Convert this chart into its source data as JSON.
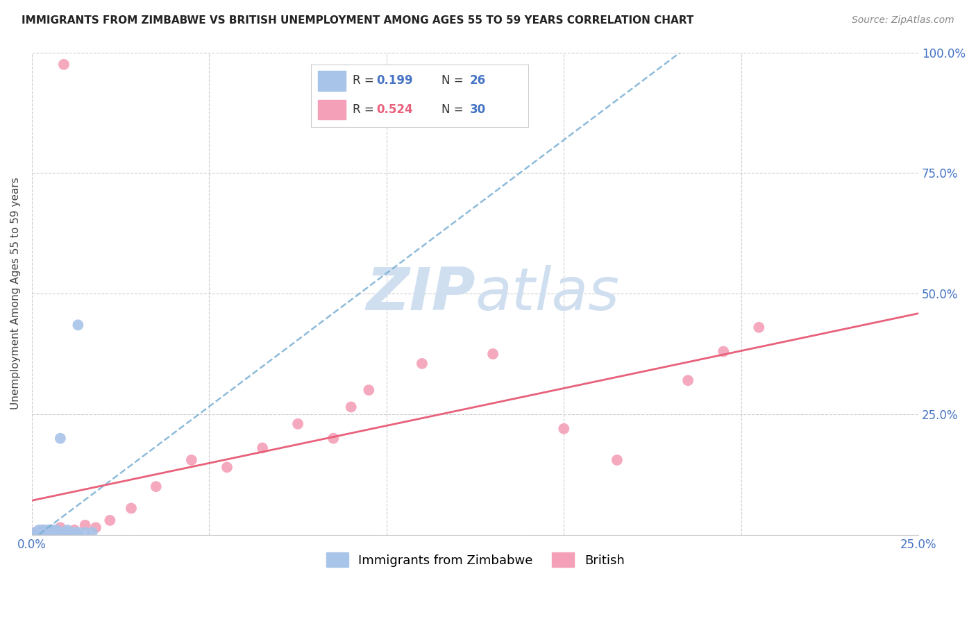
{
  "title": "IMMIGRANTS FROM ZIMBABWE VS BRITISH UNEMPLOYMENT AMONG AGES 55 TO 59 YEARS CORRELATION CHART",
  "source": "Source: ZipAtlas.com",
  "ylabel": "Unemployment Among Ages 55 to 59 years",
  "xlim": [
    0.0,
    0.25
  ],
  "ylim": [
    0.0,
    1.0
  ],
  "blue_R": 0.199,
  "blue_N": 26,
  "pink_R": 0.524,
  "pink_N": 30,
  "blue_color": "#a8c4e8",
  "pink_color": "#f4a0b8",
  "blue_line_color": "#7aafd4",
  "pink_line_color": "#e8607a",
  "tick_color": "#4472c4",
  "grid_color": "#cccccc",
  "background_color": "#ffffff",
  "watermark_color": "#d0dff0",
  "blue_x": [
    0.001,
    0.002,
    0.002,
    0.003,
    0.003,
    0.003,
    0.004,
    0.004,
    0.005,
    0.005,
    0.005,
    0.006,
    0.006,
    0.007,
    0.007,
    0.008,
    0.009,
    0.01,
    0.01,
    0.011,
    0.012,
    0.013,
    0.015,
    0.017,
    0.013,
    0.008
  ],
  "blue_y": [
    0.005,
    0.005,
    0.01,
    0.0,
    0.005,
    0.01,
    0.005,
    0.01,
    0.0,
    0.005,
    0.01,
    0.005,
    0.01,
    0.005,
    0.01,
    0.005,
    0.005,
    0.005,
    0.01,
    0.005,
    0.005,
    0.005,
    0.005,
    0.005,
    0.435,
    0.2
  ],
  "pink_x": [
    0.001,
    0.002,
    0.003,
    0.004,
    0.005,
    0.006,
    0.007,
    0.008,
    0.009,
    0.01,
    0.012,
    0.015,
    0.018,
    0.022,
    0.028,
    0.035,
    0.045,
    0.055,
    0.065,
    0.075,
    0.085,
    0.095,
    0.11,
    0.13,
    0.15,
    0.165,
    0.185,
    0.195,
    0.205,
    0.09
  ],
  "pink_y": [
    0.005,
    0.005,
    0.01,
    0.005,
    0.01,
    0.005,
    0.01,
    0.015,
    0.975,
    0.005,
    0.01,
    0.02,
    0.015,
    0.03,
    0.055,
    0.1,
    0.155,
    0.14,
    0.18,
    0.23,
    0.2,
    0.3,
    0.355,
    0.375,
    0.22,
    0.155,
    0.32,
    0.38,
    0.43,
    0.265
  ]
}
